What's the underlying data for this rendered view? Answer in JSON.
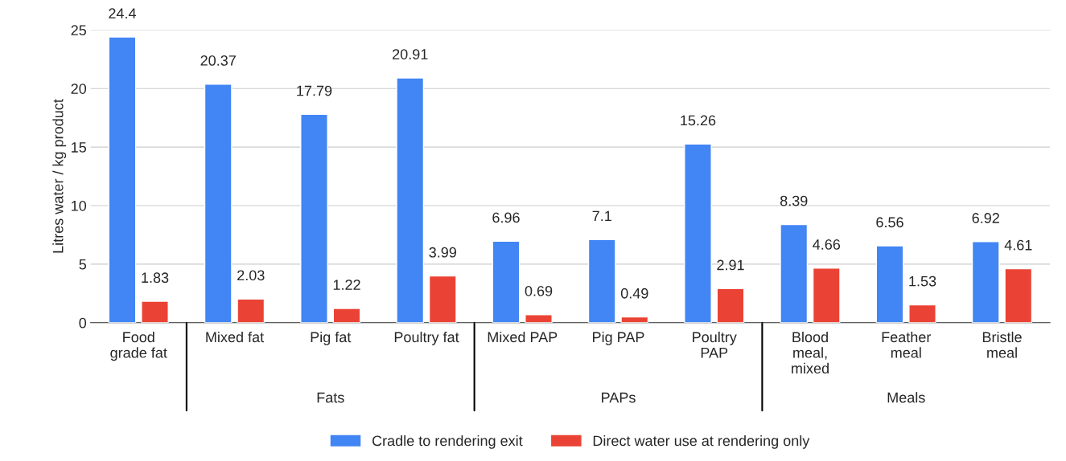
{
  "chart_data": {
    "type": "bar",
    "ylabel": "Litres water / kg product",
    "categories": [
      "Food\ngrade fat",
      "Mixed fat",
      "Pig fat",
      "Poultry fat",
      "Mixed PAP",
      "Pig PAP",
      "Poultry\nPAP",
      "Blood\nmeal,\nmixed",
      "Feather\nmeal",
      "Bristle\nmeal"
    ],
    "series": [
      {
        "name": "Cradle to rendering exit",
        "color": "#4285f4",
        "values": [
          24.4,
          20.37,
          17.79,
          20.91,
          6.96,
          7.1,
          15.26,
          8.39,
          6.56,
          6.92
        ]
      },
      {
        "name": "Direct water use at rendering only",
        "color": "#ea4335",
        "values": [
          1.83,
          2.03,
          1.22,
          3.99,
          0.69,
          0.49,
          2.91,
          4.66,
          1.53,
          4.61
        ]
      }
    ],
    "ylim": [
      0,
      25
    ],
    "yticks": [
      0,
      5,
      10,
      15,
      20,
      25
    ],
    "grid": "y",
    "legend": "bottom",
    "data_labels": true,
    "annotations": [
      "Fats",
      "PAPs",
      "Meals"
    ]
  }
}
